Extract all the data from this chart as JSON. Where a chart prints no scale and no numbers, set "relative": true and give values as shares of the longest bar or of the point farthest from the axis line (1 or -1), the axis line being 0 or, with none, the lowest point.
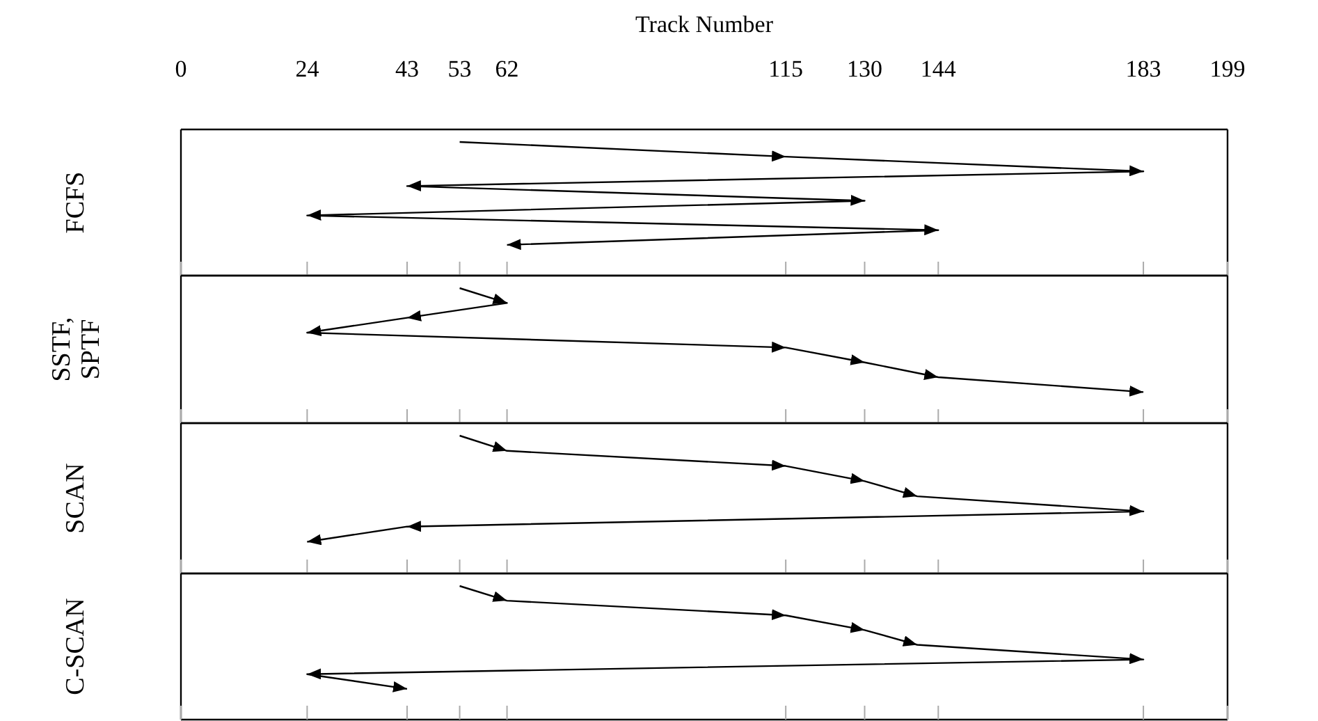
{
  "chart_data": [
    {
      "type": "line",
      "xlabel": "Track Number",
      "ylabel": "FCFS",
      "xlim": [
        0,
        199
      ],
      "xticks": [
        0,
        24,
        43,
        53,
        62,
        115,
        130,
        144,
        183,
        199
      ],
      "tick_labels": "x",
      "relative": true,
      "line_style": "solid",
      "series": [
        {
          "color": "#000000",
          "x": [
            53,
            115,
            183,
            43,
            130,
            24,
            144,
            62
          ],
          "values": [
            1,
            0.89,
            0.78,
            0.67,
            0.56,
            0.45,
            0.34,
            0.23
          ]
        }
      ]
    },
    {
      "type": "line",
      "ylabel": "SSTF, SPTF",
      "xlim": [
        0,
        199
      ],
      "xticks": [
        0,
        24,
        43,
        53,
        62,
        115,
        130,
        144,
        183,
        199
      ],
      "tick_labels": false,
      "relative": true,
      "line_style": "solid",
      "series": [
        {
          "color": "#000000",
          "x": [
            53,
            62,
            43,
            24,
            115,
            130,
            144,
            183
          ],
          "values": [
            1,
            0.89,
            0.78,
            0.67,
            0.56,
            0.45,
            0.34,
            0.23
          ]
        }
      ]
    },
    {
      "type": "line",
      "ylabel": "SCAN",
      "xlim": [
        0,
        199
      ],
      "xticks": [
        0,
        24,
        43,
        53,
        62,
        115,
        130,
        144,
        183,
        199
      ],
      "tick_labels": false,
      "relative": true,
      "line_style": "solid",
      "series": [
        {
          "color": "#000000",
          "x": [
            53,
            62,
            115,
            130,
            140,
            183,
            43,
            24
          ],
          "values": [
            1,
            0.89,
            0.78,
            0.67,
            0.56,
            0.45,
            0.34,
            0.23
          ]
        }
      ]
    },
    {
      "type": "line",
      "ylabel": "C-SCAN",
      "xlim": [
        0,
        199
      ],
      "xticks": [
        0,
        24,
        43,
        53,
        62,
        115,
        130,
        144,
        183,
        199
      ],
      "tick_labels": false,
      "relative": true,
      "line_style": "solid",
      "series": [
        {
          "color": "#000000",
          "x": [
            53,
            62,
            115,
            130,
            140,
            183,
            24,
            43
          ],
          "values": [
            1,
            0.89,
            0.78,
            0.67,
            0.56,
            0.45,
            0.34,
            0.23
          ]
        }
      ]
    }
  ]
}
